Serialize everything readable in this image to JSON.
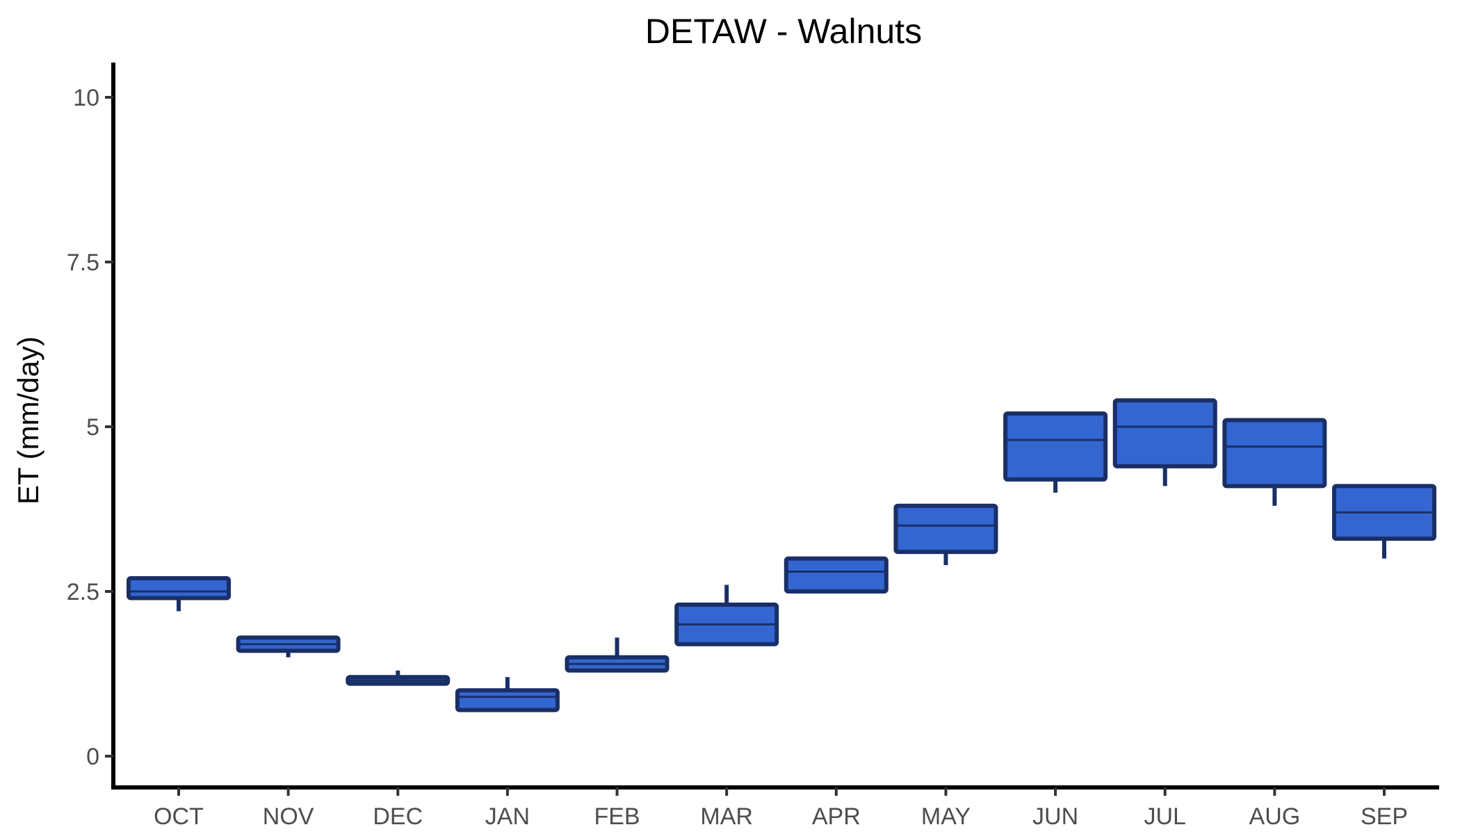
{
  "chart_data": {
    "type": "box",
    "title": "DETAW - Walnuts",
    "xlabel": "",
    "ylabel": "ET (mm/day)",
    "ylim": [
      -0.5,
      10.5
    ],
    "yticks": [
      0,
      2.5,
      5,
      7.5,
      10
    ],
    "ytick_labels": [
      "0",
      "2.5",
      "5",
      "7.5",
      "10"
    ],
    "grid": false,
    "colors": {
      "fill": "#3366d1",
      "stroke": "#1a2f66"
    },
    "categories": [
      "OCT",
      "NOV",
      "DEC",
      "JAN",
      "FEB",
      "MAR",
      "APR",
      "MAY",
      "JUN",
      "JUL",
      "AUG",
      "SEP"
    ],
    "boxes": [
      {
        "min": 2.2,
        "q1": 2.4,
        "median": 2.5,
        "q3": 2.7,
        "max": 2.7
      },
      {
        "min": 1.5,
        "q1": 1.6,
        "median": 1.7,
        "q3": 1.8,
        "max": 1.8
      },
      {
        "min": 1.1,
        "q1": 1.1,
        "median": 1.15,
        "q3": 1.2,
        "max": 1.3
      },
      {
        "min": 0.7,
        "q1": 0.7,
        "median": 0.9,
        "q3": 1.0,
        "max": 1.2
      },
      {
        "min": 1.3,
        "q1": 1.3,
        "median": 1.4,
        "q3": 1.5,
        "max": 1.8
      },
      {
        "min": 1.7,
        "q1": 1.7,
        "median": 2.0,
        "q3": 2.3,
        "max": 2.6
      },
      {
        "min": 2.5,
        "q1": 2.5,
        "median": 2.8,
        "q3": 3.0,
        "max": 3.0
      },
      {
        "min": 2.9,
        "q1": 3.1,
        "median": 3.5,
        "q3": 3.8,
        "max": 3.8
      },
      {
        "min": 4.0,
        "q1": 4.2,
        "median": 4.8,
        "q3": 5.2,
        "max": 5.2
      },
      {
        "min": 4.1,
        "q1": 4.4,
        "median": 5.0,
        "q3": 5.4,
        "max": 5.4
      },
      {
        "min": 3.8,
        "q1": 4.1,
        "median": 4.7,
        "q3": 5.1,
        "max": 5.1
      },
      {
        "min": 3.0,
        "q1": 3.3,
        "median": 3.7,
        "q3": 4.1,
        "max": 4.1
      }
    ]
  }
}
